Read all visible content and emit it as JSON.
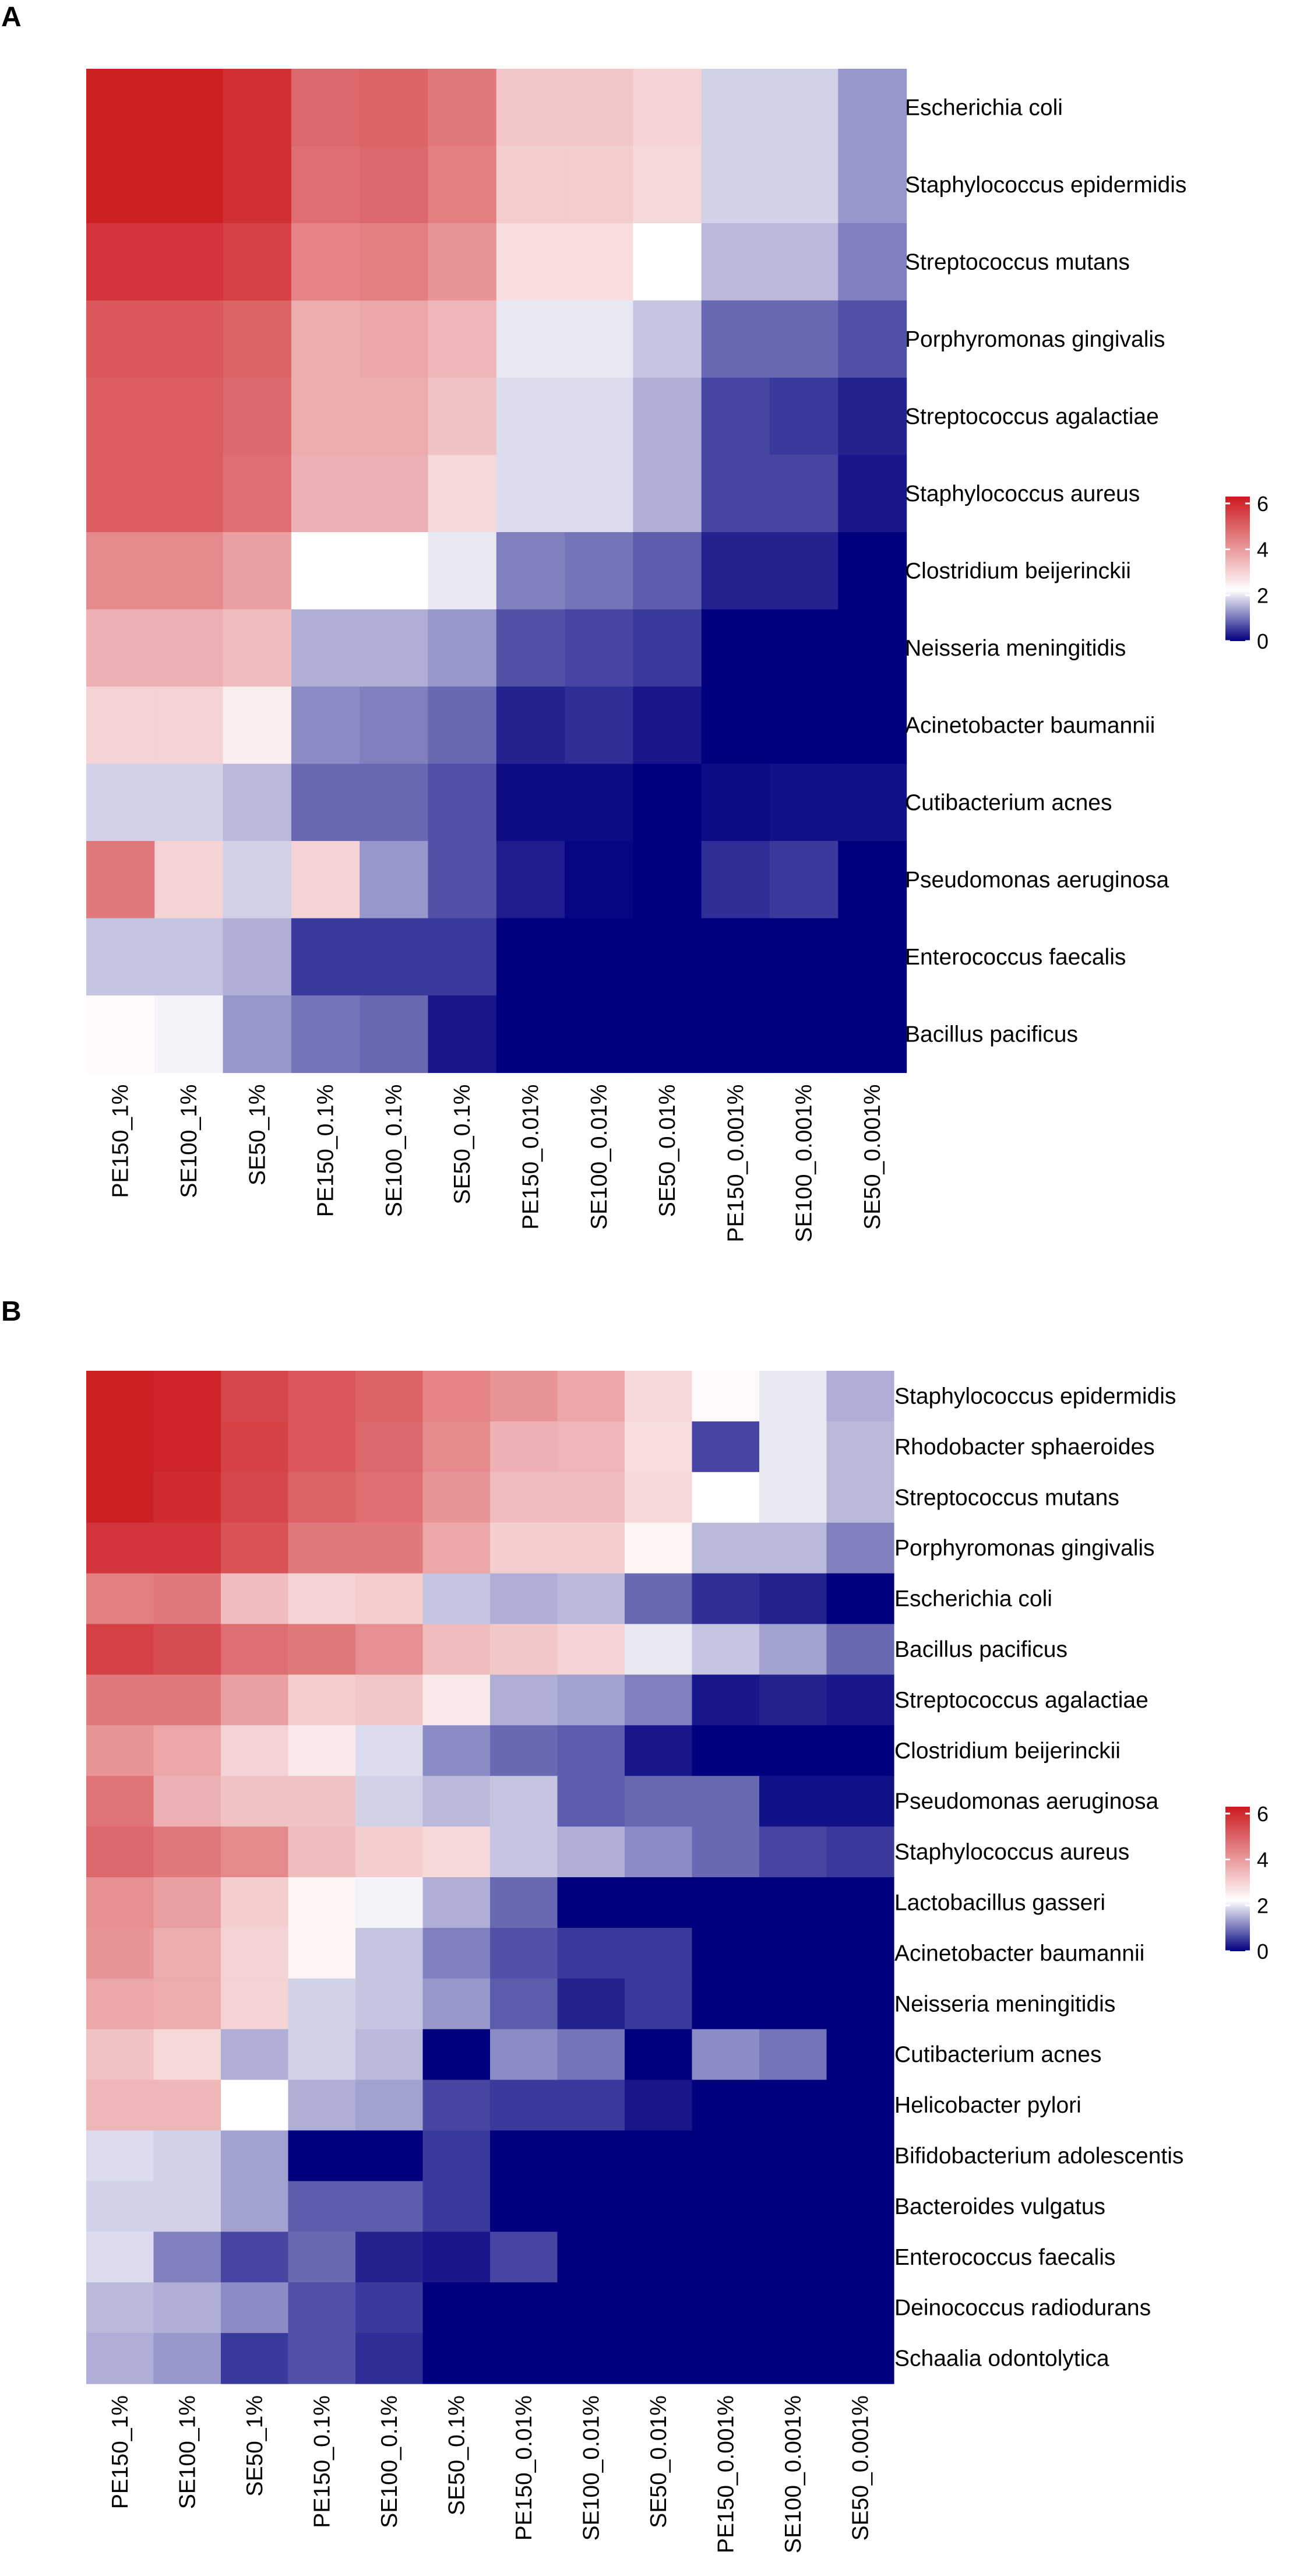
{
  "panels": [
    {
      "label": "A",
      "chart_data": {
        "type": "heatmap",
        "color_scale": {
          "min": 0,
          "max": 6.3,
          "low": "#00007f",
          "mid": "#ffffff",
          "high": "#cc1a1f",
          "midpoint": 2.2
        },
        "legend": {
          "ticks": [
            "6",
            "4",
            "2",
            "0"
          ],
          "tick_values": [
            6,
            4,
            2,
            0
          ],
          "position": "right"
        },
        "columns": [
          "PE150_1%",
          "SE100_1%",
          "SE50_1%",
          "PE150_0.1%",
          "SE100_0.1%",
          "SE50_0.1%",
          "PE150_0.01%",
          "SE100_0.01%",
          "SE50_0.01%",
          "PE150_0.001%",
          "SE100_0.001%",
          "SE50_0.001%"
        ],
        "rows": [
          "Escherichia coli",
          "Staphylococcus epidermidis",
          "Streptococcus mutans",
          "Porphyromonas gingivalis",
          "Streptococcus agalactiae",
          "Staphylococcus aureus",
          "Clostridium beijerinckii",
          "Neisseria meningitidis",
          "Acinetobacter baumannii",
          "Cutibacterium acnes",
          "Pseudomonas aeruginosa",
          "Enterococcus faecalis",
          "Bacillus pacificus"
        ],
        "values": [
          [
            6.2,
            6.2,
            5.9,
            4.9,
            5.0,
            4.6,
            3.2,
            3.2,
            3.0,
            1.8,
            1.8,
            1.3
          ],
          [
            6.2,
            6.2,
            5.9,
            4.8,
            4.9,
            4.5,
            3.1,
            3.1,
            2.9,
            1.8,
            1.8,
            1.3
          ],
          [
            5.8,
            5.8,
            5.6,
            4.4,
            4.5,
            4.1,
            2.8,
            2.8,
            2.2,
            1.6,
            1.6,
            1.1
          ],
          [
            5.2,
            5.2,
            5.0,
            3.7,
            3.8,
            3.5,
            2.0,
            2.0,
            1.7,
            0.9,
            0.9,
            0.7
          ],
          [
            5.1,
            5.1,
            4.9,
            3.7,
            3.7,
            3.3,
            1.9,
            1.9,
            1.5,
            0.6,
            0.5,
            0.3
          ],
          [
            5.1,
            5.1,
            4.8,
            3.6,
            3.6,
            2.9,
            1.9,
            1.9,
            1.5,
            0.6,
            0.6,
            0.2
          ],
          [
            4.3,
            4.3,
            3.9,
            2.2,
            2.2,
            2.0,
            1.1,
            1.0,
            0.8,
            0.3,
            0.3,
            0.0
          ],
          [
            3.6,
            3.6,
            3.4,
            1.5,
            1.5,
            1.3,
            0.7,
            0.6,
            0.5,
            0.0,
            0.0,
            0.0
          ],
          [
            3.0,
            3.0,
            2.5,
            1.2,
            1.1,
            0.9,
            0.3,
            0.4,
            0.2,
            0.0,
            0.0,
            0.0
          ],
          [
            1.8,
            1.8,
            1.6,
            0.9,
            0.9,
            0.7,
            0.1,
            0.1,
            0.0,
            0.1,
            0.15,
            0.15
          ],
          [
            4.6,
            3.0,
            1.8,
            3.0,
            1.3,
            0.7,
            0.25,
            0.05,
            0.0,
            0.4,
            0.5,
            0.0
          ],
          [
            1.7,
            1.7,
            1.5,
            0.5,
            0.5,
            0.5,
            0.0,
            0.0,
            0.0,
            0.0,
            0.0,
            0.0
          ],
          [
            2.3,
            2.1,
            1.3,
            1.0,
            0.9,
            0.2,
            0.0,
            0.0,
            0.0,
            0.0,
            0.0,
            0.0
          ]
        ]
      }
    },
    {
      "label": "B",
      "chart_data": {
        "type": "heatmap",
        "color_scale": {
          "min": 0,
          "max": 6.3,
          "low": "#00007f",
          "mid": "#ffffff",
          "high": "#cc1a1f",
          "midpoint": 2.2
        },
        "legend": {
          "ticks": [
            "6",
            "4",
            "2",
            "0"
          ],
          "tick_values": [
            6,
            4,
            2,
            0
          ],
          "position": "right"
        },
        "columns": [
          "PE150_1%",
          "SE100_1%",
          "SE50_1%",
          "PE150_0.1%",
          "SE100_0.1%",
          "SE50_0.1%",
          "PE150_0.01%",
          "SE100_0.01%",
          "SE50_0.01%",
          "PE150_0.001%",
          "SE100_0.001%",
          "SE50_0.001%"
        ],
        "rows": [
          "Staphylococcus epidermidis",
          "Rhodobacter sphaeroides",
          "Streptococcus mutans",
          "Porphyromonas gingivalis",
          "Escherichia coli",
          "Bacillus pacificus",
          "Streptococcus agalactiae",
          "Clostridium beijerinckii",
          "Pseudomonas aeruginosa",
          "Staphylococcus aureus",
          "Lactobacillus gasseri",
          "Acinetobacter baumannii",
          "Neisseria meningitidis",
          "Cutibacterium acnes",
          "Helicobacter pylori",
          "Bifidobacterium adolescentis",
          "Bacteroides vulgatus",
          "Enterococcus faecalis",
          "Deinococcus radiodurans",
          "Schaalia odontolytica"
        ],
        "values": [
          [
            6.2,
            6.1,
            5.5,
            5.2,
            5.0,
            4.4,
            4.1,
            3.8,
            2.9,
            2.3,
            2.0,
            1.5
          ],
          [
            6.2,
            6.1,
            5.6,
            5.2,
            4.9,
            4.3,
            3.6,
            3.5,
            2.8,
            0.6,
            2.0,
            1.6
          ],
          [
            6.2,
            6.0,
            5.5,
            5.0,
            4.8,
            4.1,
            3.4,
            3.4,
            2.9,
            2.2,
            2.0,
            1.6
          ],
          [
            5.8,
            5.8,
            5.3,
            4.6,
            4.6,
            3.8,
            3.1,
            3.1,
            2.4,
            1.6,
            1.6,
            1.1
          ],
          [
            4.5,
            4.6,
            3.4,
            3.0,
            3.1,
            1.7,
            1.5,
            1.6,
            0.9,
            0.4,
            0.3,
            0.0
          ],
          [
            5.6,
            5.4,
            4.8,
            4.6,
            4.2,
            3.4,
            3.2,
            3.0,
            2.0,
            1.7,
            1.4,
            0.9
          ],
          [
            4.6,
            4.6,
            3.9,
            3.1,
            3.2,
            2.6,
            1.5,
            1.4,
            1.1,
            0.2,
            0.3,
            0.2
          ],
          [
            4.1,
            3.8,
            3.0,
            2.6,
            1.9,
            1.2,
            0.9,
            0.8,
            0.2,
            0.0,
            0.0,
            0.0
          ],
          [
            4.7,
            3.6,
            3.3,
            3.3,
            1.8,
            1.6,
            1.7,
            0.8,
            0.9,
            0.9,
            0.15,
            0.15
          ],
          [
            4.9,
            4.6,
            4.3,
            3.4,
            3.1,
            2.9,
            1.7,
            1.5,
            1.2,
            0.9,
            0.6,
            0.5
          ],
          [
            4.2,
            3.9,
            3.1,
            2.4,
            2.1,
            1.5,
            0.9,
            0.0,
            0.0,
            0.0,
            0.0,
            0.0
          ],
          [
            4.1,
            3.7,
            3.0,
            2.4,
            1.7,
            1.1,
            0.7,
            0.5,
            0.5,
            0.0,
            0.0,
            0.0
          ],
          [
            3.8,
            3.7,
            3.0,
            1.8,
            1.7,
            1.3,
            0.8,
            0.3,
            0.5,
            0.0,
            0.0,
            0.0
          ],
          [
            3.3,
            2.9,
            1.5,
            1.8,
            1.6,
            0.0,
            1.2,
            1.0,
            0.0,
            1.2,
            1.0,
            0.0
          ],
          [
            3.5,
            3.5,
            2.2,
            1.5,
            1.4,
            0.6,
            0.5,
            0.5,
            0.2,
            0.0,
            0.0,
            0.0
          ],
          [
            1.9,
            1.8,
            1.4,
            0.0,
            0.0,
            0.5,
            0.0,
            0.0,
            0.0,
            0.0,
            0.0,
            0.0
          ],
          [
            1.8,
            1.8,
            1.4,
            0.8,
            0.8,
            0.5,
            0.0,
            0.0,
            0.0,
            0.0,
            0.0,
            0.0
          ],
          [
            1.9,
            1.1,
            0.6,
            0.9,
            0.3,
            0.2,
            0.6,
            0.0,
            0.0,
            0.0,
            0.0,
            0.0
          ],
          [
            1.6,
            1.5,
            1.2,
            0.7,
            0.5,
            0.0,
            0.0,
            0.0,
            0.0,
            0.0,
            0.0,
            0.0
          ],
          [
            1.5,
            1.3,
            0.5,
            0.7,
            0.4,
            0.0,
            0.0,
            0.0,
            0.0,
            0.0,
            0.0,
            0.0
          ]
        ]
      }
    }
  ]
}
